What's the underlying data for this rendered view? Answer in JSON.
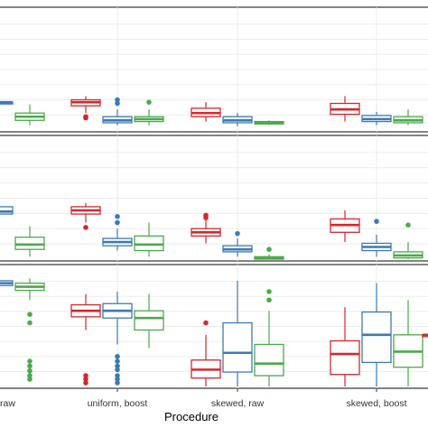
{
  "chart_data": {
    "type": "box",
    "xlabel": "Procedure",
    "categories": [
      "raw",
      "uniform, boost",
      "skewed, raw",
      "skewed, boost"
    ],
    "colors": {
      "red": "#d7262b",
      "blue": "#3b7ab8",
      "green": "#4aab48"
    },
    "grid": true,
    "note": "Three stacked facet panels; y-axis tick labels not visible (cropped). Values are in relative units 0 (bottom of panel) to 1 (top of panel).",
    "panels": [
      {
        "name": "panel-top",
        "ylim": [
          0,
          1
        ],
        "groups": [
          {
            "category": "raw",
            "boxes": [
              {
                "series": "blue",
                "color": "#3b7ab8",
                "q1": 0.23,
                "median": 0.23,
                "q3": 0.23,
                "whisker_low": 0.23,
                "whisker_high": 0.23,
                "outliers": [],
                "partial": true
              },
              {
                "series": "green",
                "color": "#4aab48",
                "q1": 0.08,
                "median": 0.11,
                "q3": 0.14,
                "whisker_low": 0.04,
                "whisker_high": 0.21,
                "outliers": []
              }
            ]
          },
          {
            "category": "uniform, boost",
            "boxes": [
              {
                "series": "red",
                "color": "#d7262b",
                "q1": 0.2,
                "median": 0.23,
                "q3": 0.25,
                "whisker_low": 0.14,
                "whisker_high": 0.28,
                "outliers": [
                  0.1,
                  0.11
                ]
              },
              {
                "series": "blue",
                "color": "#3b7ab8",
                "q1": 0.06,
                "median": 0.08,
                "q3": 0.11,
                "whisker_low": 0.04,
                "whisker_high": 0.17,
                "outliers": [
                  0.22,
                  0.25
                ]
              },
              {
                "series": "green",
                "color": "#4aab48",
                "q1": 0.07,
                "median": 0.09,
                "q3": 0.11,
                "whisker_low": 0.04,
                "whisker_high": 0.17,
                "outliers": [
                  0.23
                ]
              }
            ]
          },
          {
            "category": "skewed, raw",
            "boxes": [
              {
                "series": "red",
                "color": "#d7262b",
                "q1": 0.11,
                "median": 0.14,
                "q3": 0.18,
                "whisker_low": 0.07,
                "whisker_high": 0.23,
                "outliers": []
              },
              {
                "series": "blue",
                "color": "#3b7ab8",
                "q1": 0.06,
                "median": 0.08,
                "q3": 0.11,
                "whisker_low": 0.03,
                "whisker_high": 0.14,
                "outliers": []
              },
              {
                "series": "green",
                "color": "#4aab48",
                "q1": 0.05,
                "median": 0.06,
                "q3": 0.07,
                "whisker_low": 0.04,
                "whisker_high": 0.08,
                "outliers": []
              }
            ]
          },
          {
            "category": "skewed, boost",
            "boxes": [
              {
                "series": "red",
                "color": "#d7262b",
                "q1": 0.13,
                "median": 0.17,
                "q3": 0.22,
                "whisker_low": 0.07,
                "whisker_high": 0.28,
                "outliers": []
              },
              {
                "series": "blue",
                "color": "#3b7ab8",
                "q1": 0.07,
                "median": 0.09,
                "q3": 0.12,
                "whisker_low": 0.04,
                "whisker_high": 0.15,
                "outliers": []
              },
              {
                "series": "green",
                "color": "#4aab48",
                "q1": 0.06,
                "median": 0.08,
                "q3": 0.11,
                "whisker_low": 0.04,
                "whisker_high": 0.17,
                "outliers": []
              }
            ]
          }
        ]
      },
      {
        "name": "panel-middle",
        "ylim": [
          0,
          1
        ],
        "groups": [
          {
            "category": "raw",
            "boxes": [
              {
                "series": "blue",
                "color": "#3b7ab8",
                "q1": 0.37,
                "median": 0.39,
                "q3": 0.43,
                "whisker_low": 0.37,
                "whisker_high": 0.43,
                "outliers": [],
                "partial": true
              },
              {
                "series": "green",
                "color": "#4aab48",
                "q1": 0.08,
                "median": 0.12,
                "q3": 0.18,
                "whisker_low": 0.02,
                "whisker_high": 0.27,
                "outliers": []
              }
            ]
          },
          {
            "category": "uniform, boost",
            "boxes": [
              {
                "series": "red",
                "color": "#d7262b",
                "q1": 0.37,
                "median": 0.4,
                "q3": 0.43,
                "whisker_low": 0.3,
                "whisker_high": 0.46,
                "outliers": [
                  0.26
                ]
              },
              {
                "series": "blue",
                "color": "#3b7ab8",
                "q1": 0.11,
                "median": 0.14,
                "q3": 0.17,
                "whisker_low": 0.07,
                "whisker_high": 0.25,
                "outliers": [
                  0.3,
                  0.35
                ]
              },
              {
                "series": "green",
                "color": "#4aab48",
                "q1": 0.07,
                "median": 0.12,
                "q3": 0.19,
                "whisker_low": 0.02,
                "whisker_high": 0.3,
                "outliers": []
              }
            ]
          },
          {
            "category": "skewed, raw",
            "boxes": [
              {
                "series": "red",
                "color": "#d7262b",
                "q1": 0.19,
                "median": 0.22,
                "q3": 0.25,
                "whisker_low": 0.13,
                "whisker_high": 0.32,
                "outliers": [
                  0.34,
                  0.36
                ]
              },
              {
                "series": "blue",
                "color": "#3b7ab8",
                "q1": 0.06,
                "median": 0.08,
                "q3": 0.11,
                "whisker_low": 0.02,
                "whisker_high": 0.17,
                "outliers": [
                  0.21
                ]
              },
              {
                "series": "green",
                "color": "#4aab48",
                "q1": 0.0,
                "median": 0.01,
                "q3": 0.02,
                "whisker_low": 0.0,
                "whisker_high": 0.04,
                "outliers": [
                  0.08
                ]
              }
            ]
          },
          {
            "category": "skewed, boost",
            "boxes": [
              {
                "series": "red",
                "color": "#d7262b",
                "q1": 0.22,
                "median": 0.28,
                "q3": 0.33,
                "whisker_low": 0.14,
                "whisker_high": 0.4,
                "outliers": []
              },
              {
                "series": "blue",
                "color": "#3b7ab8",
                "q1": 0.07,
                "median": 0.1,
                "q3": 0.13,
                "whisker_low": 0.02,
                "whisker_high": 0.2,
                "outliers": [
                  0.31
                ]
              },
              {
                "series": "green",
                "color": "#4aab48",
                "q1": 0.01,
                "median": 0.03,
                "q3": 0.06,
                "whisker_low": 0.0,
                "whisker_high": 0.14,
                "outliers": [
                  0.28
                ]
              }
            ]
          }
        ]
      },
      {
        "name": "panel-bottom",
        "ylim": [
          0,
          1
        ],
        "groups": [
          {
            "category": "raw",
            "boxes": [
              {
                "series": "blue",
                "color": "#3b7ab8",
                "q1": 0.84,
                "median": 0.86,
                "q3": 0.88,
                "whisker_low": 0.84,
                "whisker_high": 0.88,
                "outliers": [],
                "partial": true
              },
              {
                "series": "green",
                "color": "#4aab48",
                "q1": 0.8,
                "median": 0.83,
                "q3": 0.86,
                "whisker_low": 0.72,
                "whisker_high": 0.9,
                "outliers": [
                  0.6,
                  0.53,
                  0.21,
                  0.17,
                  0.13,
                  0.09,
                  0.06
                ]
              }
            ]
          },
          {
            "category": "uniform, boost",
            "boxes": [
              {
                "series": "red",
                "color": "#d7262b",
                "q1": 0.58,
                "median": 0.63,
                "q3": 0.68,
                "whisker_low": 0.47,
                "whisker_high": 0.77,
                "outliers": [
                  0.09,
                  0.06,
                  0.03
                ]
              },
              {
                "series": "blue",
                "color": "#3b7ab8",
                "q1": 0.57,
                "median": 0.63,
                "q3": 0.69,
                "whisker_low": 0.35,
                "whisker_high": 0.79,
                "outliers": [
                  0.25,
                  0.21,
                  0.17,
                  0.14,
                  0.09,
                  0.06,
                  0.03
                ]
              },
              {
                "series": "green",
                "color": "#4aab48",
                "q1": 0.47,
                "median": 0.57,
                "q3": 0.63,
                "whisker_low": 0.32,
                "whisker_high": 0.77,
                "outliers": []
              }
            ]
          },
          {
            "category": "skewed, raw",
            "boxes": [
              {
                "series": "red",
                "color": "#d7262b",
                "q1": 0.07,
                "median": 0.14,
                "q3": 0.22,
                "whisker_low": 0.0,
                "whisker_high": 0.43,
                "outliers": [
                  0.53
                ]
              },
              {
                "series": "blue",
                "color": "#3b7ab8",
                "q1": 0.12,
                "median": 0.28,
                "q3": 0.53,
                "whisker_low": 0.0,
                "whisker_high": 0.88,
                "outliers": []
              },
              {
                "series": "green",
                "color": "#4aab48",
                "q1": 0.09,
                "median": 0.19,
                "q3": 0.35,
                "whisker_low": 0.0,
                "whisker_high": 0.63,
                "outliers": [
                  0.72,
                  0.79
                ]
              }
            ]
          },
          {
            "category": "skewed, boost",
            "boxes": [
              {
                "series": "red",
                "color": "#d7262b",
                "q1": 0.1,
                "median": 0.27,
                "q3": 0.38,
                "whisker_low": 0.0,
                "whisker_high": 0.66,
                "outliers": []
              },
              {
                "series": "blue",
                "color": "#3b7ab8",
                "q1": 0.2,
                "median": 0.43,
                "q3": 0.62,
                "whisker_low": 0.0,
                "whisker_high": 0.86,
                "outliers": []
              },
              {
                "series": "green",
                "color": "#4aab48",
                "q1": 0.16,
                "median": 0.29,
                "q3": 0.43,
                "whisker_low": 0.0,
                "whisker_high": 0.72,
                "outliers": []
              },
              {
                "series": "red",
                "color": "#d7262b",
                "q1": 0.43,
                "median": 0.43,
                "q3": 0.43,
                "whisker_low": 0.43,
                "whisker_high": 0.9,
                "outliers": [],
                "partial": true
              }
            ]
          }
        ]
      }
    ]
  }
}
